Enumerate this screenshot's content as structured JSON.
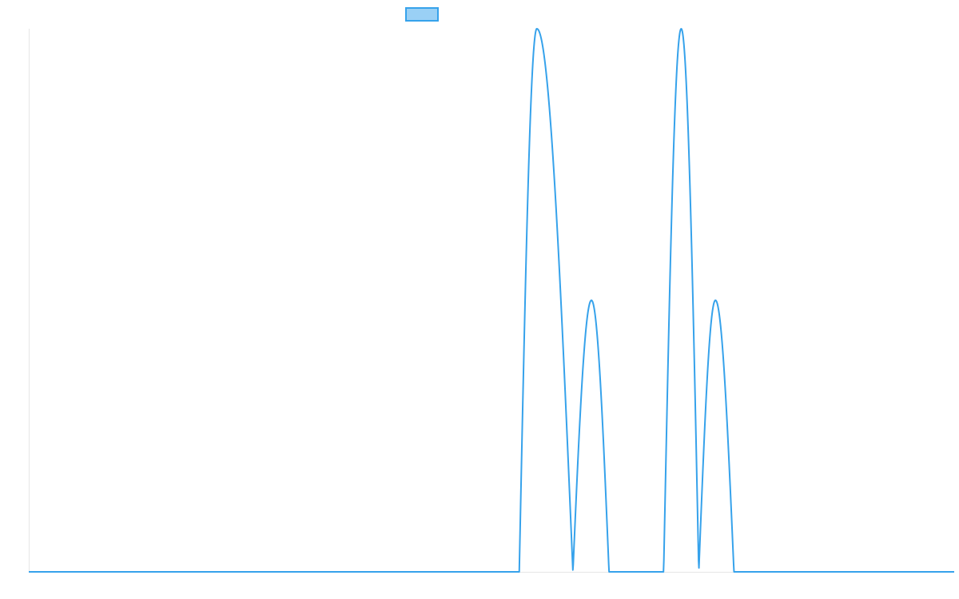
{
  "chart_data": {
    "type": "line",
    "title": "",
    "xlabel": "",
    "ylabel": "",
    "grid": false,
    "legend_position": "top",
    "x_range": [
      0,
      100
    ],
    "y_range": [
      0,
      1
    ],
    "series": [
      {
        "name": "",
        "color": "#36a2eb",
        "fill_color": "#9ad0f5",
        "pulses": [
          {
            "start": 53.0,
            "peak": 54.9,
            "end": 58.8,
            "height": 1.0
          },
          {
            "start": 58.8,
            "peak": 60.8,
            "end": 62.7,
            "height": 0.5
          },
          {
            "start": 68.6,
            "peak": 70.5,
            "end": 72.4,
            "height": 1.0
          },
          {
            "start": 72.4,
            "peak": 74.2,
            "end": 76.2,
            "height": 0.5
          }
        ]
      }
    ]
  }
}
